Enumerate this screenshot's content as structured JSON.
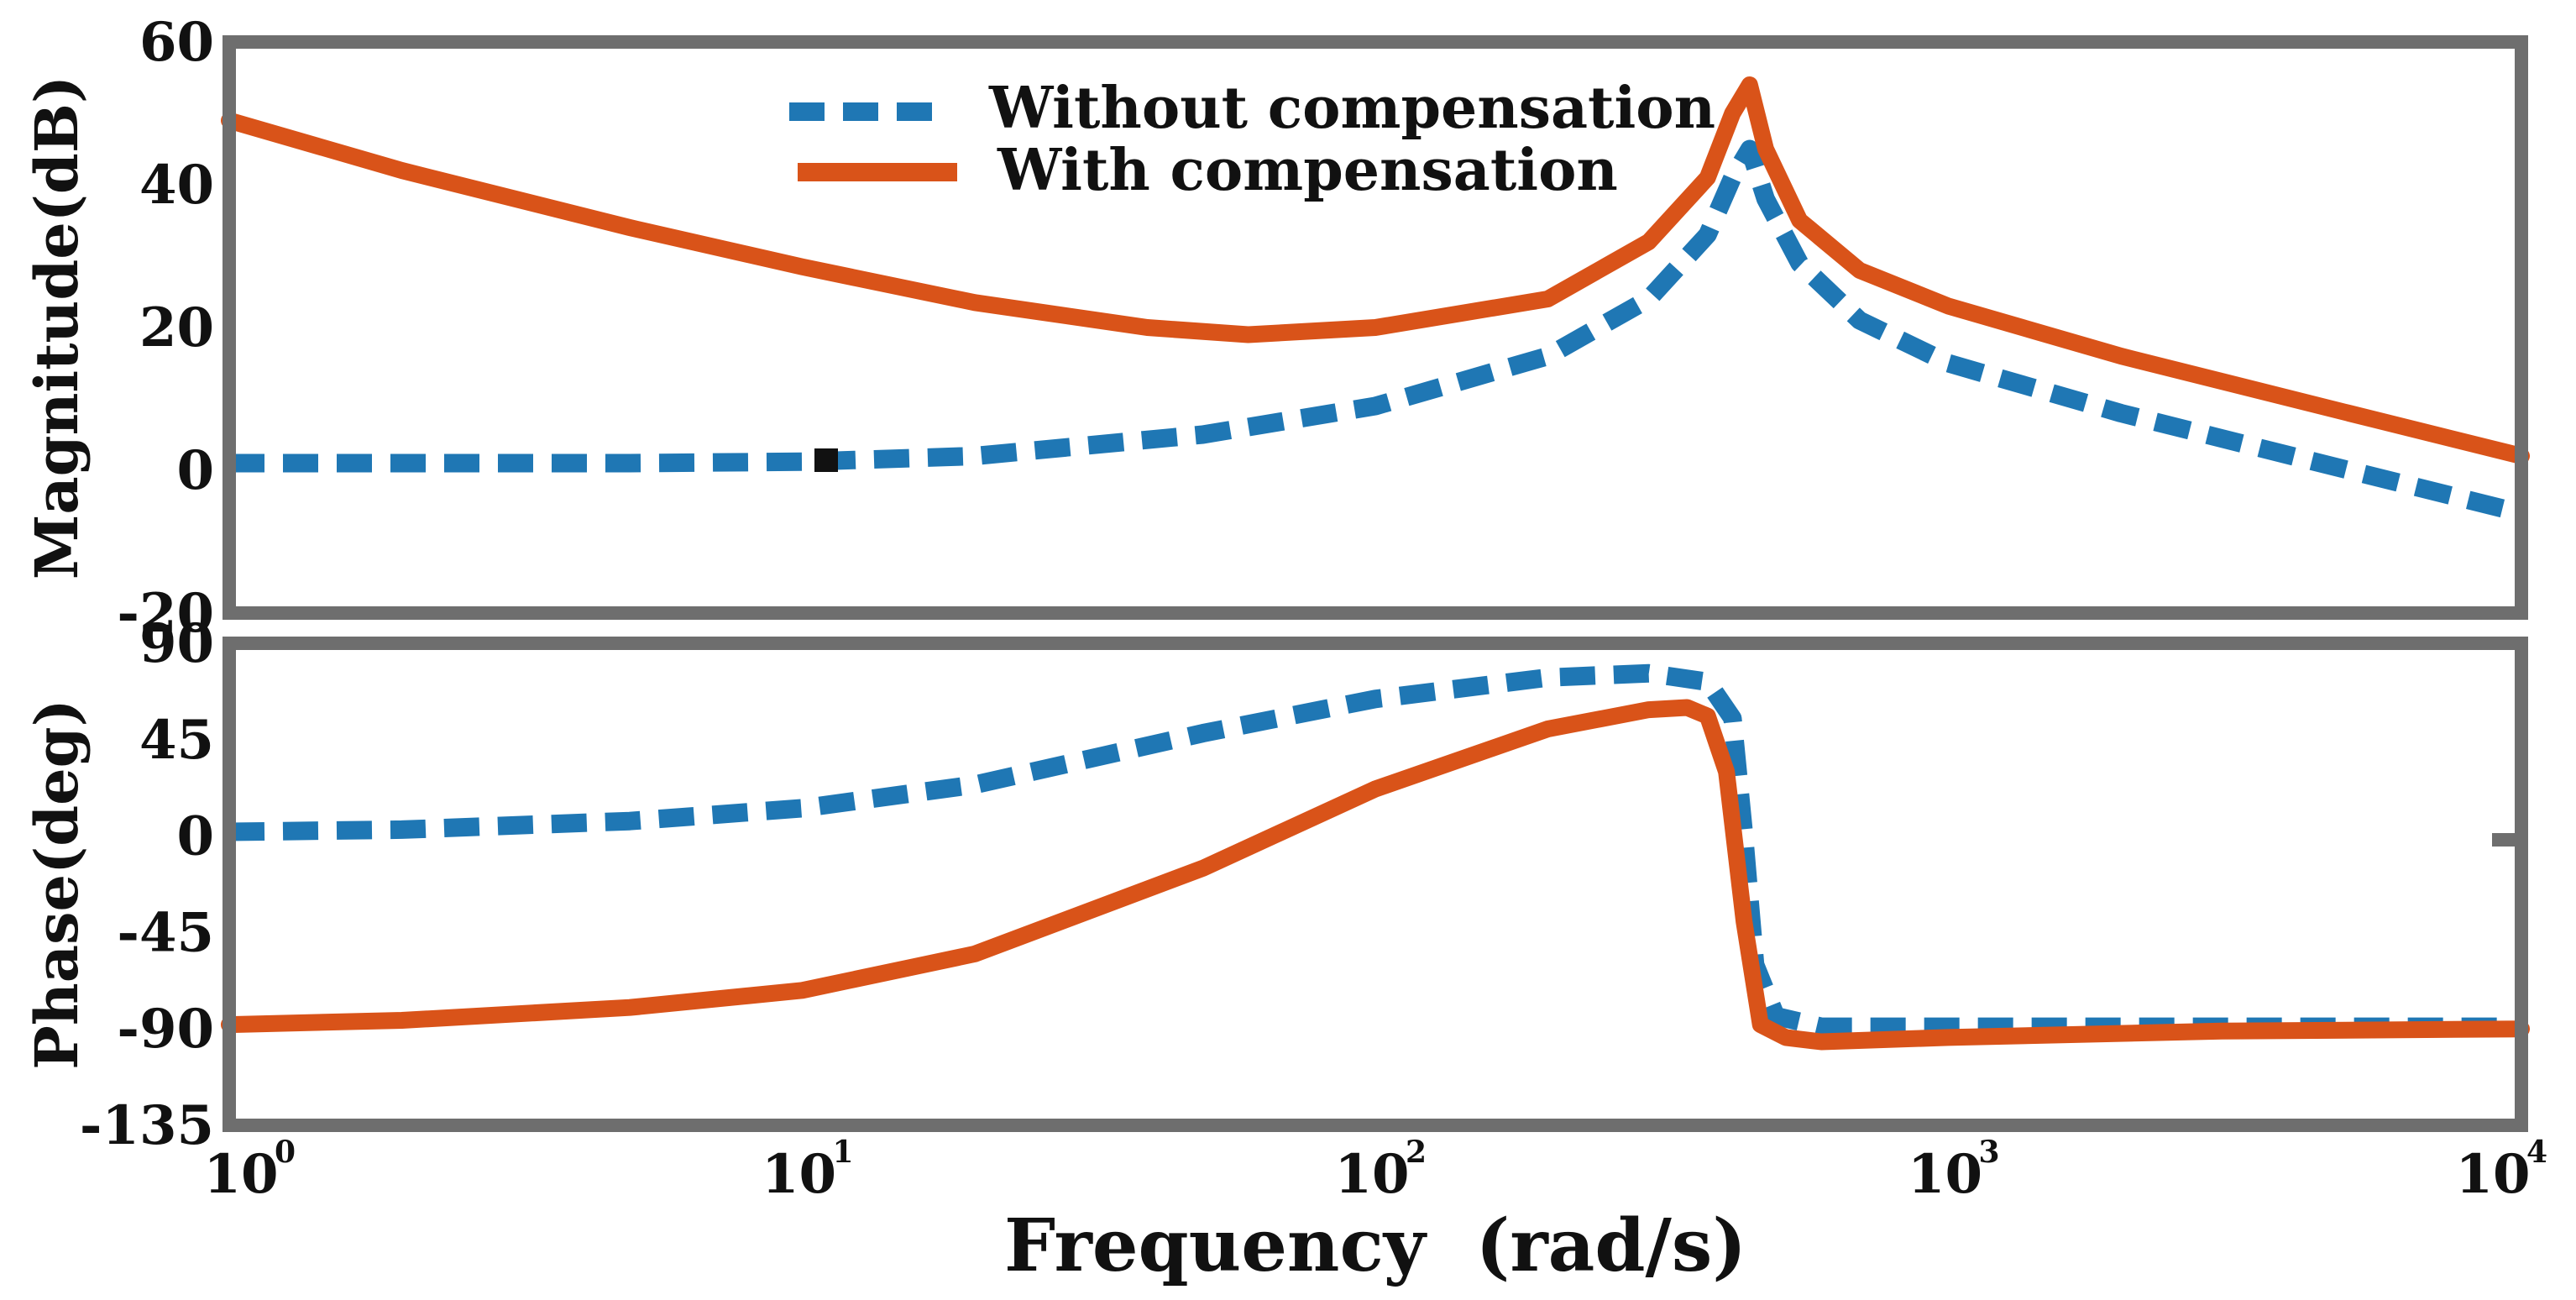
{
  "chart_data": {
    "type": "line",
    "title": "",
    "x_scale": "log",
    "xlim": [
      1,
      10000
    ],
    "xlabel": "Frequency  (rad/s)",
    "x_tick_labels": [
      {
        "value": 1,
        "base": "10",
        "exp": "0"
      },
      {
        "value": 10,
        "base": "10",
        "exp": "1"
      },
      {
        "value": 100,
        "base": "10",
        "exp": "2"
      },
      {
        "value": 1000,
        "base": "10",
        "exp": "3"
      },
      {
        "value": 10000,
        "base": "10",
        "exp": "4"
      }
    ],
    "colors": {
      "without": "#1f77b4",
      "with": "#d95319",
      "frame": "#6e6e6e"
    },
    "legend": {
      "placement": "top-center",
      "entries": [
        {
          "label": "Without compensation",
          "style": "dashed",
          "color": "#1f77b4"
        },
        {
          "label": "With compensation",
          "style": "solid",
          "color": "#d95319"
        }
      ]
    },
    "panels": [
      {
        "name": "magnitude",
        "ylabel": "Magnitude(dB)",
        "ylim": [
          -20,
          60
        ],
        "yticks": [
          60,
          40,
          20,
          0,
          -20
        ],
        "ytick_labels": [
          "60",
          "40",
          "20",
          "0",
          "-20"
        ],
        "series": [
          {
            "name": "Without compensation",
            "points": [
              [
                1,
                1
              ],
              [
                2,
                1
              ],
              [
                5,
                1
              ],
              [
                10,
                1.2
              ],
              [
                20,
                2
              ],
              [
                50,
                5
              ],
              [
                100,
                9
              ],
              [
                200,
                16
              ],
              [
                300,
                24
              ],
              [
                380,
                33
              ],
              [
                420,
                41
              ],
              [
                450,
                45
              ],
              [
                480,
                38
              ],
              [
                550,
                29
              ],
              [
                700,
                21
              ],
              [
                1000,
                15
              ],
              [
                2000,
                8
              ],
              [
                5000,
                0
              ],
              [
                10000,
                -6
              ]
            ]
          },
          {
            "name": "With compensation",
            "points": [
              [
                1,
                49
              ],
              [
                2,
                42
              ],
              [
                5,
                34
              ],
              [
                10,
                28.5
              ],
              [
                20,
                23.5
              ],
              [
                40,
                20
              ],
              [
                60,
                19
              ],
              [
                100,
                20
              ],
              [
                200,
                24
              ],
              [
                300,
                32
              ],
              [
                380,
                41
              ],
              [
                420,
                50
              ],
              [
                450,
                54
              ],
              [
                480,
                45
              ],
              [
                550,
                35
              ],
              [
                700,
                28
              ],
              [
                1000,
                23
              ],
              [
                2000,
                16
              ],
              [
                5000,
                8
              ],
              [
                10000,
                2
              ]
            ]
          }
        ]
      },
      {
        "name": "phase",
        "ylabel": "Phase(deg)",
        "ylim": [
          -135,
          90
        ],
        "yticks": [
          90,
          45,
          0,
          -45,
          -90,
          -135
        ],
        "ytick_labels": [
          "90",
          "45",
          "0",
          "-45",
          "-90",
          "-135"
        ],
        "series": [
          {
            "name": "Without compensation",
            "points": [
              [
                1,
                2
              ],
              [
                2,
                3
              ],
              [
                5,
                7
              ],
              [
                10,
                13
              ],
              [
                20,
                24
              ],
              [
                50,
                48
              ],
              [
                100,
                64
              ],
              [
                200,
                74
              ],
              [
                300,
                76
              ],
              [
                380,
                72
              ],
              [
                420,
                55
              ],
              [
                440,
                0
              ],
              [
                460,
                -60
              ],
              [
                500,
                -84
              ],
              [
                600,
                -89
              ],
              [
                1000,
                -89
              ],
              [
                10000,
                -89
              ]
            ]
          },
          {
            "name": "With compensation",
            "points": [
              [
                1,
                -88
              ],
              [
                2,
                -86
              ],
              [
                5,
                -80
              ],
              [
                10,
                -72
              ],
              [
                20,
                -55
              ],
              [
                50,
                -15
              ],
              [
                100,
                22
              ],
              [
                200,
                50
              ],
              [
                300,
                59
              ],
              [
                350,
                60
              ],
              [
                380,
                56
              ],
              [
                410,
                30
              ],
              [
                440,
                -40
              ],
              [
                470,
                -88
              ],
              [
                520,
                -94
              ],
              [
                600,
                -96
              ],
              [
                1000,
                -94
              ],
              [
                3000,
                -91
              ],
              [
                10000,
                -90
              ]
            ]
          }
        ]
      }
    ]
  }
}
